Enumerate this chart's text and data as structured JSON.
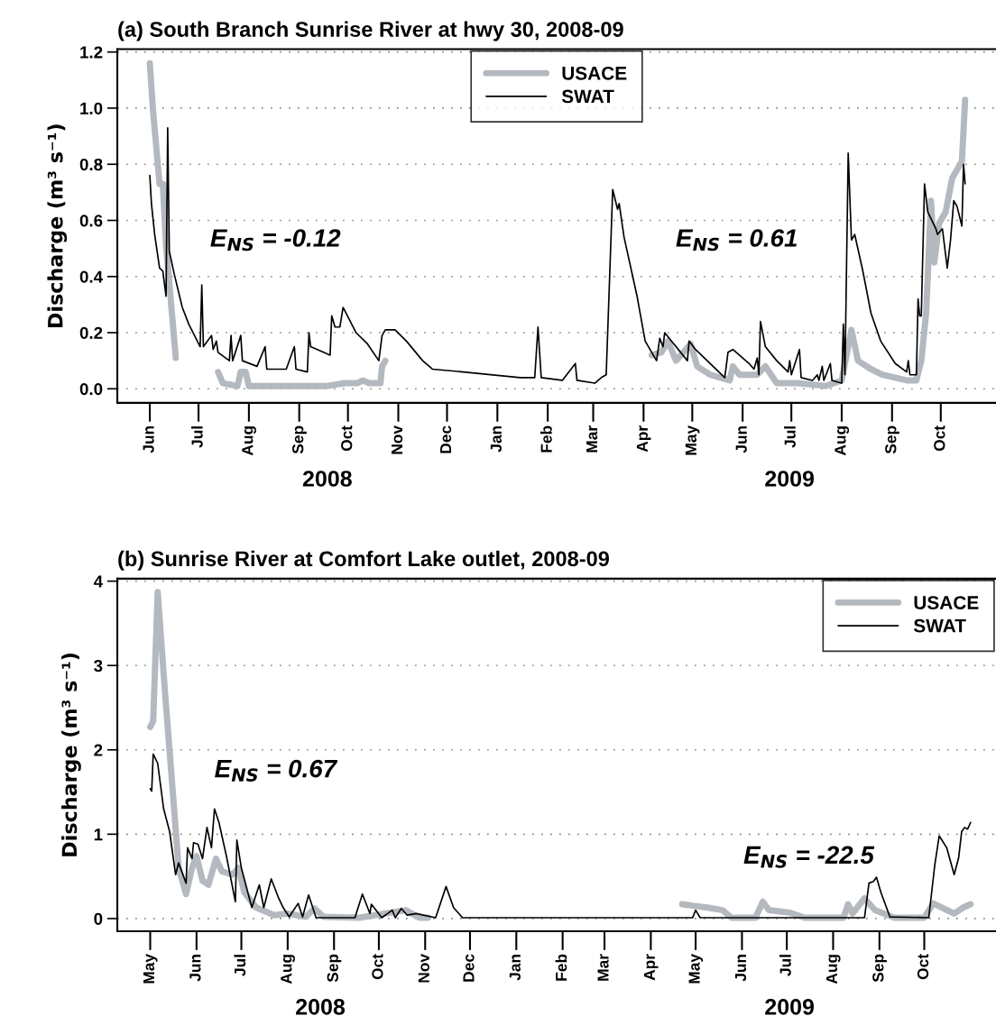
{
  "chart_data": [
    {
      "type": "line",
      "title": "(a) South Branch Sunrise River at hwy 30, 2008-09",
      "ylabel": "Discharge (m³ s⁻¹)",
      "annotations": [
        "E$_{NS}$ = -0.12",
        "E$_{NS}$ = 0.61",
        "2008",
        "2009"
      ],
      "xlim": [
        "2008-05-12",
        "2009-11-04"
      ],
      "ylim": [
        -0.05,
        1.21
      ],
      "yticks": [
        {
          "value": 0,
          "label": "0.0"
        },
        {
          "value": 0.2,
          "label": "0.2"
        },
        {
          "value": 0.4,
          "label": "0.4"
        },
        {
          "value": 0.6,
          "label": "0.6"
        },
        {
          "value": 0.8,
          "label": "0.8"
        },
        {
          "value": 1.0,
          "label": "1.0"
        },
        {
          "value": 1.2,
          "label": "1.2"
        }
      ],
      "xticks": [
        {
          "value": "2008-06-01",
          "label": "Jun"
        },
        {
          "value": "2008-07-01",
          "label": "Jul"
        },
        {
          "value": "2008-08-01",
          "label": "Aug"
        },
        {
          "value": "2008-09-01",
          "label": "Sep"
        },
        {
          "value": "2008-10-01",
          "label": "Oct"
        },
        {
          "value": "2008-11-01",
          "label": "Nov"
        },
        {
          "value": "2008-12-01",
          "label": "Dec"
        },
        {
          "value": "2009-01-01",
          "label": "Jan"
        },
        {
          "value": "2009-02-01",
          "label": "Feb"
        },
        {
          "value": "2009-03-01",
          "label": "Mar"
        },
        {
          "value": "2009-04-01",
          "label": "Apr"
        },
        {
          "value": "2009-05-01",
          "label": "May"
        },
        {
          "value": "2009-06-01",
          "label": "Jun"
        },
        {
          "value": "2009-07-01",
          "label": "Jul"
        },
        {
          "value": "2009-08-01",
          "label": "Aug"
        },
        {
          "value": "2009-09-01",
          "label": "Sep"
        },
        {
          "value": "2009-10-01",
          "label": "Oct"
        }
      ],
      "grid": "y",
      "legend": "top",
      "series": [
        {
          "name": "USACE",
          "color": "#b4b9bf",
          "x": [
            "2008-06-01",
            "2008-06-03",
            "2008-06-07",
            "2008-06-09",
            "2008-06-11",
            "2008-06-17",
            "2008-06-28",
            "2008-07-13",
            "2008-07-16",
            "2008-07-25",
            "2008-07-27",
            "2008-07-30",
            "2008-08-01",
            "2008-08-21",
            "2008-09-18",
            "2008-09-29",
            "2008-10-07",
            "2008-10-10",
            "2008-10-14",
            "2008-10-21",
            "2008-10-22",
            "2008-10-24",
            "2009-01-01",
            "2009-04-06",
            "2009-04-12",
            "2009-04-16",
            "2009-04-21",
            "2009-04-30",
            "2009-05-04",
            "2009-05-12",
            "2009-05-24",
            "2009-05-26",
            "2009-05-30",
            "2009-06-10",
            "2009-06-15",
            "2009-06-22",
            "2009-07-05",
            "2009-07-22",
            "2009-08-01",
            "2009-08-07",
            "2009-08-11",
            "2009-08-19",
            "2009-08-26",
            "2009-09-10",
            "2009-09-16",
            "2009-09-19",
            "2009-09-22",
            "2009-09-25",
            "2009-09-27",
            "2009-09-30",
            "2009-10-04",
            "2009-10-08",
            "2009-10-14",
            "2009-10-16"
          ],
          "values": [
            1.16,
            0.99,
            0.73,
            0.73,
            0.51,
            0.11,
            null,
            0.06,
            0.02,
            0.01,
            0.06,
            0.06,
            0.01,
            0.01,
            0.01,
            0.02,
            0.02,
            0.03,
            0.02,
            0.02,
            0.08,
            0.1,
            null,
            0.12,
            0.13,
            0.17,
            0.1,
            0.16,
            0.08,
            0.05,
            0.03,
            0.08,
            0.05,
            0.05,
            0.08,
            0.02,
            0.02,
            0.01,
            0.03,
            0.21,
            0.1,
            0.07,
            0.05,
            0.03,
            0.03,
            0.1,
            0.27,
            0.67,
            0.45,
            0.59,
            0.63,
            0.75,
            0.81,
            1.03
          ]
        },
        {
          "name": "SWAT",
          "color": "#000000",
          "x": [
            "2008-06-01",
            "2008-06-02",
            "2008-06-04",
            "2008-06-07",
            "2008-06-09",
            "2008-06-11",
            "2008-06-12",
            "2008-06-13",
            "2008-06-16",
            "2008-06-21",
            "2008-06-25",
            "2008-07-02",
            "2008-07-03",
            "2008-07-04",
            "2008-07-09",
            "2008-07-10",
            "2008-07-12",
            "2008-07-13",
            "2008-07-20",
            "2008-07-21",
            "2008-07-22",
            "2008-07-27",
            "2008-07-28",
            "2008-08-06",
            "2008-08-11",
            "2008-08-12",
            "2008-08-24",
            "2008-08-29",
            "2008-08-30",
            "2008-09-06",
            "2008-09-07",
            "2008-09-08",
            "2008-09-16",
            "2008-09-20",
            "2008-09-21",
            "2008-09-23",
            "2008-09-26",
            "2008-09-28",
            "2008-10-06",
            "2008-10-13",
            "2008-10-20",
            "2008-10-22",
            "2008-10-24",
            "2008-10-30",
            "2008-11-06",
            "2008-11-16",
            "2008-11-22",
            "2008-12-11",
            "2009-01-15",
            "2009-01-24",
            "2009-01-26",
            "2009-01-28",
            "2009-02-10",
            "2009-02-18",
            "2009-02-19",
            "2009-03-02",
            "2009-03-06",
            "2009-03-09",
            "2009-03-13",
            "2009-03-16",
            "2009-03-17",
            "2009-03-20",
            "2009-03-28",
            "2009-04-02",
            "2009-04-09",
            "2009-04-11",
            "2009-04-13",
            "2009-04-14",
            "2009-04-28",
            "2009-04-29",
            "2009-05-03",
            "2009-05-21",
            "2009-05-23",
            "2009-05-26",
            "2009-06-05",
            "2009-06-08",
            "2009-06-10",
            "2009-06-11",
            "2009-06-12",
            "2009-06-15",
            "2009-06-22",
            "2009-06-29",
            "2009-06-30",
            "2009-07-01",
            "2009-07-06",
            "2009-07-07",
            "2009-07-14",
            "2009-07-17",
            "2009-07-18",
            "2009-07-20",
            "2009-07-21",
            "2009-07-25",
            "2009-07-26",
            "2009-08-01",
            "2009-08-02",
            "2009-08-03",
            "2009-08-05",
            "2009-08-07",
            "2009-08-09",
            "2009-08-14",
            "2009-08-19",
            "2009-08-25",
            "2009-09-03",
            "2009-09-10",
            "2009-09-11",
            "2009-09-12",
            "2009-09-16",
            "2009-09-17",
            "2009-09-18",
            "2009-09-19",
            "2009-09-21",
            "2009-09-23",
            "2009-09-28",
            "2009-09-29",
            "2009-10-02",
            "2009-10-05",
            "2009-10-07",
            "2009-10-09",
            "2009-10-11",
            "2009-10-14",
            "2009-10-15",
            "2009-10-16"
          ],
          "values": [
            0.76,
            0.66,
            0.55,
            0.43,
            0.42,
            0.33,
            0.93,
            0.49,
            0.41,
            0.29,
            0.23,
            0.15,
            0.37,
            0.15,
            0.19,
            0.14,
            0.17,
            0.13,
            0.1,
            0.19,
            0.1,
            0.19,
            0.1,
            0.08,
            0.15,
            0.07,
            0.07,
            0.15,
            0.07,
            0.06,
            0.2,
            0.15,
            0.13,
            0.12,
            0.26,
            0.22,
            0.22,
            0.29,
            0.2,
            0.16,
            0.1,
            0.19,
            0.21,
            0.21,
            0.17,
            0.1,
            0.07,
            0.06,
            0.04,
            0.04,
            0.22,
            0.04,
            0.03,
            0.09,
            0.03,
            0.02,
            0.04,
            0.05,
            0.71,
            0.64,
            0.66,
            0.54,
            0.33,
            0.17,
            0.1,
            0.18,
            0.15,
            0.2,
            0.1,
            0.17,
            0.14,
            0.04,
            0.13,
            0.14,
            0.09,
            0.07,
            0.11,
            0.05,
            0.24,
            0.15,
            0.1,
            0.06,
            0.1,
            0.05,
            0.14,
            0.04,
            0.03,
            0.05,
            0.03,
            0.08,
            0.03,
            0.09,
            0.03,
            0.02,
            0.23,
            0.05,
            0.84,
            0.53,
            0.55,
            0.42,
            0.27,
            0.17,
            0.09,
            0.06,
            0.1,
            0.05,
            0.05,
            0.32,
            0.26,
            0.26,
            0.73,
            0.63,
            0.57,
            0.55,
            0.57,
            0.43,
            0.53,
            0.67,
            0.65,
            0.58,
            0.8,
            0.73
          ]
        }
      ]
    },
    {
      "type": "line",
      "title": "(b) Sunrise River at Comfort Lake outlet, 2008-09",
      "ylabel": "Discharge (m³ s⁻¹)",
      "annotations": [
        "E$_{NS}$ = 0.67",
        "E$_{NS}$ = -22.5",
        "2008",
        "2009"
      ],
      "xlim": [
        "2008-04-09",
        "2009-11-18"
      ],
      "ylim": [
        -0.15,
        4.03
      ],
      "yticks": [
        0,
        1,
        2,
        3,
        4
      ],
      "xticks": [
        {
          "value": "2008-05-01",
          "label": "May"
        },
        {
          "value": "2008-06-01",
          "label": "Jun"
        },
        {
          "value": "2008-07-01",
          "label": "Jul"
        },
        {
          "value": "2008-08-01",
          "label": "Aug"
        },
        {
          "value": "2008-09-01",
          "label": "Sep"
        },
        {
          "value": "2008-10-01",
          "label": "Oct"
        },
        {
          "value": "2008-11-01",
          "label": "Nov"
        },
        {
          "value": "2008-12-01",
          "label": "Dec"
        },
        {
          "value": "2009-01-01",
          "label": "Jan"
        },
        {
          "value": "2009-02-01",
          "label": "Feb"
        },
        {
          "value": "2009-03-01",
          "label": "Mar"
        },
        {
          "value": "2009-04-01",
          "label": "Apr"
        },
        {
          "value": "2009-05-01",
          "label": "May"
        },
        {
          "value": "2009-06-01",
          "label": "Jun"
        },
        {
          "value": "2009-07-01",
          "label": "Jul"
        },
        {
          "value": "2009-08-01",
          "label": "Aug"
        },
        {
          "value": "2009-09-01",
          "label": "Sep"
        },
        {
          "value": "2009-10-01",
          "label": "Oct"
        }
      ],
      "grid": "y",
      "legend": "top right",
      "series": [
        {
          "name": "USACE",
          "color": "#b4b9bf",
          "x": [
            "2008-05-01",
            "2008-05-03",
            "2008-05-06",
            "2008-05-11",
            "2008-05-17",
            "2008-05-20",
            "2008-05-25",
            "2008-05-29",
            "2008-06-01",
            "2008-06-05",
            "2008-06-09",
            "2008-06-14",
            "2008-06-18",
            "2008-06-25",
            "2008-06-29",
            "2008-07-03",
            "2008-07-11",
            "2008-07-23",
            "2008-08-01",
            "2008-08-13",
            "2008-08-19",
            "2008-08-25",
            "2008-09-18",
            "2008-10-19",
            "2008-10-28",
            "2008-11-03",
            "2009-01-01",
            "2009-04-22",
            "2009-04-30",
            "2009-05-09",
            "2009-05-19",
            "2009-05-25",
            "2009-06-10",
            "2009-06-15",
            "2009-06-19",
            "2009-07-03",
            "2009-07-13",
            "2009-08-08",
            "2009-08-11",
            "2009-08-14",
            "2009-08-22",
            "2009-08-29",
            "2009-09-11",
            "2009-10-01",
            "2009-10-07",
            "2009-10-21",
            "2009-10-27",
            "2009-11-01"
          ],
          "values": [
            2.27,
            2.34,
            3.87,
            2.66,
            1.3,
            0.6,
            0.29,
            0.6,
            0.74,
            0.45,
            0.4,
            0.71,
            0.56,
            0.52,
            0.6,
            0.31,
            0.13,
            0.04,
            0.06,
            0.02,
            0.12,
            0.02,
            0.01,
            0.1,
            0.01,
            0.01,
            null,
            0.17,
            0.15,
            0.13,
            0.1,
            0.01,
            0.01,
            0.2,
            0.1,
            0.07,
            0.01,
            0.01,
            0.17,
            0.06,
            0.24,
            0.1,
            0.01,
            0.01,
            0.18,
            0.06,
            0.13,
            0.17
          ]
        },
        {
          "name": "SWAT",
          "color": "#000000",
          "x": [
            "2008-05-01",
            "2008-05-02",
            "2008-05-03",
            "2008-05-06",
            "2008-05-10",
            "2008-05-14",
            "2008-05-18",
            "2008-05-20",
            "2008-05-25",
            "2008-05-26",
            "2008-05-29",
            "2008-05-30",
            "2008-06-02",
            "2008-06-05",
            "2008-06-08",
            "2008-06-11",
            "2008-06-13",
            "2008-06-16",
            "2008-06-21",
            "2008-06-27",
            "2008-06-28",
            "2008-07-01",
            "2008-07-08",
            "2008-07-13",
            "2008-07-16",
            "2008-07-21",
            "2008-07-26",
            "2008-07-29",
            "2008-08-02",
            "2008-08-08",
            "2008-08-11",
            "2008-08-15",
            "2008-08-20",
            "2008-09-15",
            "2008-09-20",
            "2008-09-25",
            "2008-09-26",
            "2008-10-03",
            "2008-10-10",
            "2008-10-12",
            "2008-10-16",
            "2008-10-20",
            "2008-10-26",
            "2008-11-08",
            "2008-11-15",
            "2008-11-20",
            "2008-11-26",
            "2009-03-21",
            "2009-04-29",
            "2009-05-01",
            "2009-05-04",
            "2009-08-22",
            "2009-08-25",
            "2009-08-28",
            "2009-08-30",
            "2009-09-02",
            "2009-09-08",
            "2009-10-04",
            "2009-10-08",
            "2009-10-11",
            "2009-10-16",
            "2009-10-21",
            "2009-10-24",
            "2009-10-26",
            "2009-10-28",
            "2009-10-30",
            "2009-11-01"
          ],
          "values": [
            1.54,
            1.51,
            1.95,
            1.84,
            1.3,
            1.03,
            0.52,
            0.66,
            0.42,
            0.84,
            0.71,
            0.9,
            0.88,
            0.71,
            1.08,
            0.84,
            1.3,
            1.14,
            0.74,
            0.2,
            0.93,
            0.6,
            0.13,
            0.4,
            0.13,
            0.47,
            0.24,
            0.13,
            0.02,
            0.18,
            0.02,
            0.28,
            0.01,
            0.01,
            0.29,
            0.06,
            0.17,
            0.01,
            0.1,
            0.01,
            0.12,
            0.04,
            0.06,
            0.01,
            0.38,
            0.13,
            0.01,
            0.01,
            0.01,
            0.1,
            0.01,
            0.01,
            0.42,
            0.44,
            0.49,
            0.31,
            0.02,
            0.01,
            0.63,
            0.98,
            0.84,
            0.52,
            0.72,
            1.03,
            1.08,
            1.06,
            1.14
          ]
        }
      ]
    }
  ]
}
